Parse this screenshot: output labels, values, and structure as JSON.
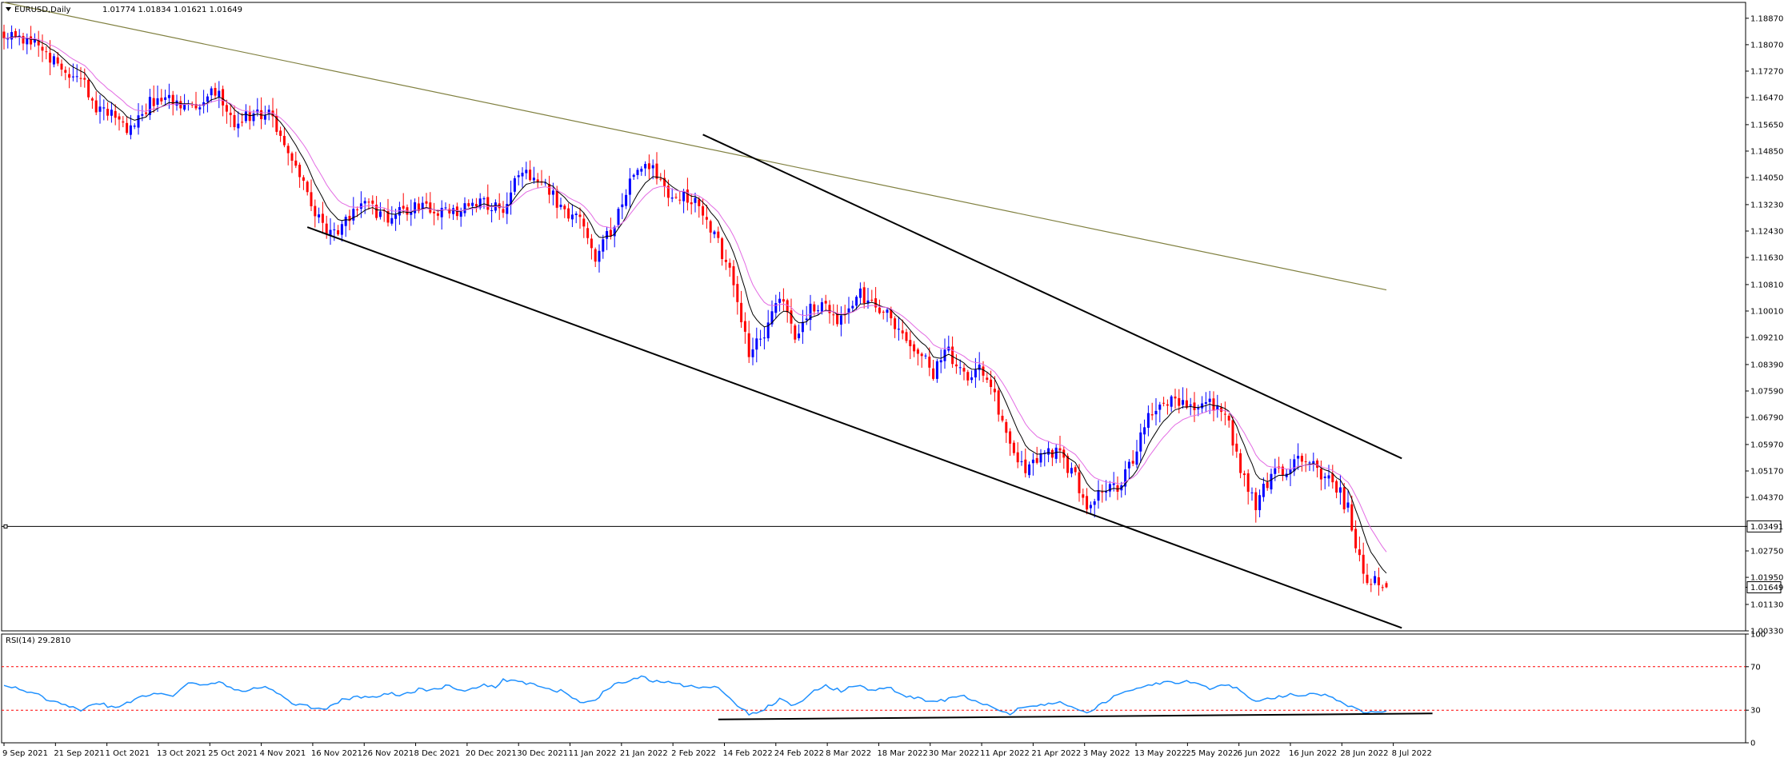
{
  "chart_data": [
    {
      "type": "candlestick",
      "symbol": "EURUSD",
      "timeframe": "Daily",
      "header_text": "EURUSD,Daily",
      "ohlc_text": "1.01774 1.01834 1.01621 1.01649",
      "ohlc": {
        "open": 1.01774,
        "high": 1.01834,
        "low": 1.01621,
        "close": 1.01649
      },
      "current_price_label": "1.01649",
      "horizontal_line_label": "1.03491",
      "horizontal_line_value": 1.03491,
      "ylim": [
        1.0033,
        1.1935
      ],
      "grid": false,
      "y_ticks": [
        "1.18870",
        "1.18070",
        "1.17270",
        "1.16470",
        "1.15650",
        "1.14850",
        "1.14050",
        "1.13230",
        "1.12430",
        "1.11630",
        "1.10810",
        "1.10010",
        "1.09210",
        "1.08390",
        "1.07590",
        "1.06790",
        "1.05970",
        "1.05170",
        "1.04370",
        "1.03491",
        "1.02750",
        "1.01950",
        "1.01649",
        "1.01130",
        "1.00330"
      ],
      "x_ticks": [
        "9 Sep 2021",
        "21 Sep 2021",
        "1 Oct 2021",
        "13 Oct 2021",
        "25 Oct 2021",
        "4 Nov 2021",
        "16 Nov 2021",
        "26 Nov 2021",
        "8 Dec 2021",
        "20 Dec 2021",
        "30 Dec 2021",
        "11 Jan 2022",
        "21 Jan 2022",
        "2 Feb 2022",
        "14 Feb 2022",
        "24 Feb 2022",
        "8 Mar 2022",
        "18 Mar 2022",
        "30 Mar 2022",
        "11 Apr 2022",
        "21 Apr 2022",
        "3 May 2022",
        "13 May 2022",
        "25 May 2022",
        "6 Jun 2022",
        "16 Jun 2022",
        "28 Jun 2022",
        "8 Jul 2022"
      ],
      "close_anchors": [
        [
          0,
          1.184
        ],
        [
          5,
          1.182
        ],
        [
          10,
          1.179
        ],
        [
          14,
          1.174
        ],
        [
          20,
          1.17
        ],
        [
          25,
          1.1605
        ],
        [
          28,
          1.1595
        ],
        [
          32,
          1.1555
        ],
        [
          38,
          1.163
        ],
        [
          45,
          1.164
        ],
        [
          50,
          1.1605
        ],
        [
          55,
          1.1665
        ],
        [
          60,
          1.157
        ],
        [
          65,
          1.16
        ],
        [
          70,
          1.159
        ],
        [
          75,
          1.1455
        ],
        [
          80,
          1.133
        ],
        [
          84,
          1.123
        ],
        [
          88,
          1.126
        ],
        [
          92,
          1.133
        ],
        [
          100,
          1.129
        ],
        [
          108,
          1.132
        ],
        [
          116,
          1.13
        ],
        [
          124,
          1.1335
        ],
        [
          130,
          1.131
        ],
        [
          134,
          1.1425
        ],
        [
          138,
          1.14
        ],
        [
          144,
          1.1335
        ],
        [
          150,
          1.127
        ],
        [
          154,
          1.116
        ],
        [
          160,
          1.129
        ],
        [
          164,
          1.143
        ],
        [
          168,
          1.145
        ],
        [
          172,
          1.136
        ],
        [
          178,
          1.135
        ],
        [
          182,
          1.131
        ],
        [
          186,
          1.12
        ],
        [
          190,
          1.108
        ],
        [
          194,
          1.087
        ],
        [
          198,
          1.0935
        ],
        [
          202,
          1.106
        ],
        [
          206,
          1.0925
        ],
        [
          210,
          1.102
        ],
        [
          214,
          1.101
        ],
        [
          218,
          1.097
        ],
        [
          222,
          1.105
        ],
        [
          226,
          1.104
        ],
        [
          230,
          1.099
        ],
        [
          234,
          1.093
        ],
        [
          238,
          1.088
        ],
        [
          242,
          1.081
        ],
        [
          246,
          1.088
        ],
        [
          250,
          1.08
        ],
        [
          254,
          1.0845
        ],
        [
          258,
          1.075
        ],
        [
          262,
          1.058
        ],
        [
          266,
          1.0525
        ],
        [
          270,
          1.056
        ],
        [
          274,
          1.057
        ],
        [
          278,
          1.052
        ],
        [
          282,
          1.041
        ],
        [
          286,
          1.046
        ],
        [
          290,
          1.046
        ],
        [
          294,
          1.056
        ],
        [
          298,
          1.07
        ],
        [
          302,
          1.073
        ],
        [
          306,
          1.073
        ],
        [
          310,
          1.07
        ],
        [
          314,
          1.072
        ],
        [
          318,
          1.069
        ],
        [
          322,
          1.052
        ],
        [
          326,
          1.042
        ],
        [
          330,
          1.05
        ],
        [
          334,
          1.053
        ],
        [
          338,
          1.055
        ],
        [
          342,
          1.052
        ],
        [
          346,
          1.049
        ],
        [
          350,
          1.04
        ],
        [
          354,
          1.02
        ],
        [
          358,
          1.017
        ],
        [
          360,
          1.0165
        ]
      ],
      "series": [
        {
          "name": "",
          "kind": "moving-average-fast",
          "color": "#000000"
        },
        {
          "name": "",
          "kind": "moving-average-slow",
          "color": "#e36be3"
        },
        {
          "name": "",
          "kind": "moving-average-long",
          "color": "#808040",
          "values_start": [
            0,
            1.1935
          ],
          "values_end": [
            360,
            1.1065
          ]
        }
      ],
      "trendlines": [
        {
          "name": "",
          "kind": "channel-upper",
          "from": [
            182,
            1.1535
          ],
          "to": [
            364,
            1.0555
          ]
        },
        {
          "name": "",
          "kind": "channel-lower",
          "from": [
            79,
            1.1255
          ],
          "to": [
            364,
            1.0042
          ]
        }
      ],
      "colors": {
        "bull": "#0000ff",
        "bear": "#ff0000",
        "hline": "#000000",
        "axis": "#000000"
      }
    },
    {
      "type": "line",
      "indicator": "RSI",
      "header_text": "RSI(14) 29.2810",
      "value": 29.281,
      "ylim": [
        0,
        100
      ],
      "y_ticks": [
        "100",
        "70",
        "30",
        "0"
      ],
      "levels": [
        70,
        30
      ],
      "rsi_anchors": [
        [
          0,
          52
        ],
        [
          3,
          50
        ],
        [
          6,
          46
        ],
        [
          9,
          45
        ],
        [
          12,
          38
        ],
        [
          16,
          36
        ],
        [
          20,
          28
        ],
        [
          24,
          37
        ],
        [
          28,
          33
        ],
        [
          32,
          36
        ],
        [
          36,
          42
        ],
        [
          40,
          45
        ],
        [
          44,
          44
        ],
        [
          48,
          55
        ],
        [
          52,
          52
        ],
        [
          56,
          57
        ],
        [
          60,
          48
        ],
        [
          64,
          48
        ],
        [
          68,
          53
        ],
        [
          72,
          44
        ],
        [
          76,
          35
        ],
        [
          80,
          33
        ],
        [
          84,
          32
        ],
        [
          88,
          39
        ],
        [
          92,
          43
        ],
        [
          96,
          41
        ],
        [
          100,
          45
        ],
        [
          104,
          44
        ],
        [
          108,
          49
        ],
        [
          112,
          49
        ],
        [
          116,
          53
        ],
        [
          120,
          47
        ],
        [
          124,
          53
        ],
        [
          128,
          52
        ],
        [
          130,
          58
        ],
        [
          134,
          56
        ],
        [
          138,
          53
        ],
        [
          142,
          49
        ],
        [
          146,
          47
        ],
        [
          150,
          37
        ],
        [
          154,
          40
        ],
        [
          158,
          52
        ],
        [
          162,
          56
        ],
        [
          166,
          60
        ],
        [
          170,
          56
        ],
        [
          174,
          56
        ],
        [
          178,
          52
        ],
        [
          182,
          50
        ],
        [
          186,
          52
        ],
        [
          190,
          37
        ],
        [
          194,
          26
        ],
        [
          198,
          31
        ],
        [
          202,
          40
        ],
        [
          206,
          34
        ],
        [
          210,
          46
        ],
        [
          214,
          52
        ],
        [
          218,
          48
        ],
        [
          222,
          53
        ],
        [
          226,
          48
        ],
        [
          230,
          52
        ],
        [
          234,
          44
        ],
        [
          238,
          41
        ],
        [
          242,
          38
        ],
        [
          246,
          40
        ],
        [
          250,
          43
        ],
        [
          254,
          38
        ],
        [
          258,
          31
        ],
        [
          262,
          27
        ],
        [
          266,
          34
        ],
        [
          270,
          34
        ],
        [
          274,
          38
        ],
        [
          278,
          34
        ],
        [
          282,
          28
        ],
        [
          286,
          36
        ],
        [
          290,
          44
        ],
        [
          294,
          50
        ],
        [
          298,
          53
        ],
        [
          302,
          55
        ],
        [
          306,
          56
        ],
        [
          310,
          56
        ],
        [
          314,
          50
        ],
        [
          318,
          54
        ],
        [
          322,
          48
        ],
        [
          326,
          38
        ],
        [
          330,
          41
        ],
        [
          334,
          44
        ],
        [
          338,
          44
        ],
        [
          342,
          46
        ],
        [
          346,
          41
        ],
        [
          350,
          34
        ],
        [
          354,
          29
        ],
        [
          358,
          29
        ],
        [
          360,
          29.28
        ]
      ],
      "trendline": {
        "from": [
          186,
          21.5
        ],
        "to": [
          372,
          27
        ]
      },
      "colors": {
        "line": "#1e90ff",
        "level": "#ff0000",
        "trend": "#000000"
      }
    }
  ]
}
